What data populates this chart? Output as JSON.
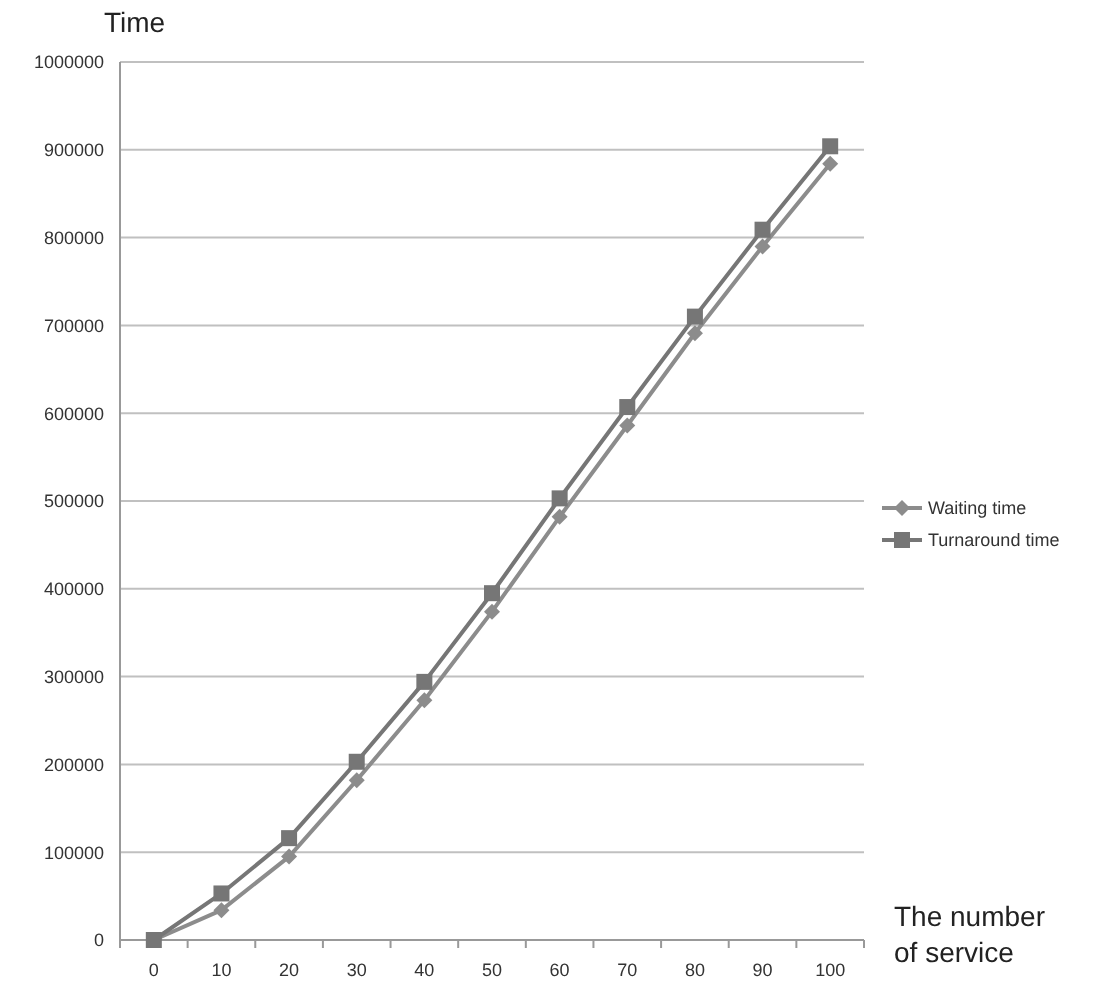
{
  "chart_data": {
    "type": "line",
    "ylabel": "Time",
    "xlabel": "The number of service",
    "categories": [
      "0",
      "10",
      "20",
      "30",
      "40",
      "50",
      "60",
      "70",
      "80",
      "90",
      "100"
    ],
    "series": [
      {
        "name": "Waiting time",
        "color": "#8c8c8c",
        "marker": "diamond",
        "values": [
          0,
          34000,
          95000,
          182000,
          273000,
          374000,
          482000,
          586000,
          691000,
          790000,
          884000
        ]
      },
      {
        "name": "Turnaround time",
        "color": "#767676",
        "marker": "square",
        "values": [
          0,
          53000,
          116000,
          203000,
          294000,
          395000,
          503000,
          607000,
          710000,
          809000,
          904000
        ]
      }
    ],
    "ylim": [
      0,
      1000000
    ],
    "yticks": [
      0,
      100000,
      200000,
      300000,
      400000,
      500000,
      600000,
      700000,
      800000,
      900000,
      1000000
    ],
    "grid": "y",
    "legend": "right",
    "line_style": "solid"
  }
}
